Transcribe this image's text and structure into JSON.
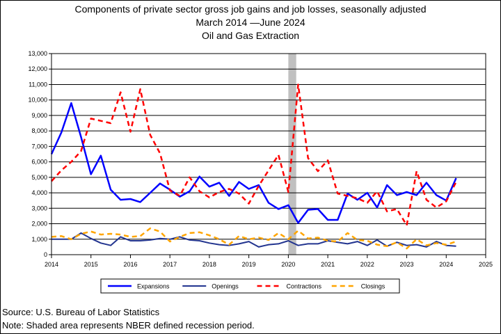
{
  "titles": {
    "line1": "Components of private sector gross job gains and job losses, seasonally adjusted",
    "line2": "March 2014 —June 2024",
    "line3": "Oil and Gas Extraction"
  },
  "footer": {
    "source": "Source: U.S. Bureau of Labor Statistics",
    "note": "Note: Shaded area represents NBER defined recession period."
  },
  "chart_data": {
    "type": "line",
    "ylim": [
      0,
      13000
    ],
    "y_ticks": [
      0,
      1000,
      2000,
      3000,
      4000,
      5000,
      6000,
      7000,
      8000,
      9000,
      10000,
      11000,
      12000,
      13000
    ],
    "y_tick_labels": [
      "0",
      "1,000",
      "2,000",
      "3,000",
      "4,000",
      "5,000",
      "6,000",
      "7,000",
      "8,000",
      "9,000",
      "10,000",
      "11,000",
      "12,000",
      "13,000"
    ],
    "xlim": [
      2014,
      2025
    ],
    "x_ticks": [
      2014,
      2015,
      2016,
      2017,
      2018,
      2019,
      2020,
      2021,
      2022,
      2023,
      2024,
      2025
    ],
    "x_tick_labels": [
      "2014",
      "2015",
      "2016",
      "2017",
      "2018",
      "2019",
      "2020",
      "2021",
      "2022",
      "2023",
      "2024",
      "2025"
    ],
    "grid": "horizontal",
    "recession": [
      2020.0,
      2020.2
    ],
    "legend_position": "bottom",
    "x": [
      2014.0,
      2014.25,
      2014.5,
      2014.75,
      2015.0,
      2015.25,
      2015.5,
      2015.75,
      2016.0,
      2016.25,
      2016.5,
      2016.75,
      2017.0,
      2017.25,
      2017.5,
      2017.75,
      2018.0,
      2018.25,
      2018.5,
      2018.75,
      2019.0,
      2019.25,
      2019.5,
      2019.75,
      2020.0,
      2020.25,
      2020.5,
      2020.75,
      2021.0,
      2021.25,
      2021.5,
      2021.75,
      2022.0,
      2022.25,
      2022.5,
      2022.75,
      2023.0,
      2023.25,
      2023.5,
      2023.75,
      2024.0,
      2024.25
    ],
    "series": [
      {
        "name": "Expansions",
        "color": "#0000ff",
        "style": "solid",
        "width": 2.5,
        "values": [
          6500,
          7900,
          9800,
          7600,
          5200,
          6400,
          4200,
          3550,
          3600,
          3400,
          4000,
          4600,
          4200,
          3750,
          4100,
          5050,
          4400,
          4650,
          3800,
          4700,
          4250,
          4500,
          3350,
          2950,
          3200,
          2050,
          2900,
          2950,
          2250,
          2250,
          3950,
          3550,
          4000,
          3050,
          4500,
          3850,
          4050,
          3850,
          4650,
          3850,
          3500,
          4950
        ]
      },
      {
        "name": "Openings",
        "color": "#22348f",
        "style": "solid",
        "width": 2,
        "values": [
          1000,
          1000,
          1000,
          1400,
          1050,
          750,
          600,
          1150,
          900,
          900,
          950,
          1050,
          1000,
          1150,
          950,
          900,
          750,
          650,
          600,
          700,
          850,
          500,
          650,
          700,
          900,
          600,
          700,
          700,
          900,
          800,
          700,
          850,
          600,
          950,
          550,
          800,
          600,
          650,
          500,
          850,
          600,
          550
        ]
      },
      {
        "name": "Contractions",
        "color": "#ff0000",
        "style": "dashed",
        "width": 2.5,
        "values": [
          4750,
          5450,
          6000,
          6700,
          8800,
          8650,
          8500,
          10500,
          7950,
          10700,
          7750,
          6550,
          4150,
          3800,
          5000,
          4100,
          3700,
          4050,
          4250,
          3950,
          3300,
          4450,
          5450,
          6450,
          4050,
          11000,
          6250,
          5400,
          6100,
          3950,
          3800,
          3650,
          3350,
          4100,
          2800,
          2950,
          1900,
          5400,
          3550,
          3050,
          3450,
          4700
        ]
      },
      {
        "name": "Closings",
        "color": "#ffa500",
        "style": "dashed",
        "width": 2.5,
        "values": [
          1150,
          1200,
          1000,
          1350,
          1500,
          1300,
          1350,
          1300,
          1150,
          1200,
          1700,
          1500,
          850,
          1150,
          1400,
          1450,
          1250,
          1000,
          650,
          1200,
          1000,
          1100,
          950,
          1400,
          1000,
          1550,
          1050,
          1100,
          900,
          850,
          1400,
          950,
          900,
          650,
          550,
          800,
          400,
          1000,
          600,
          750,
          650,
          850
        ]
      }
    ]
  }
}
